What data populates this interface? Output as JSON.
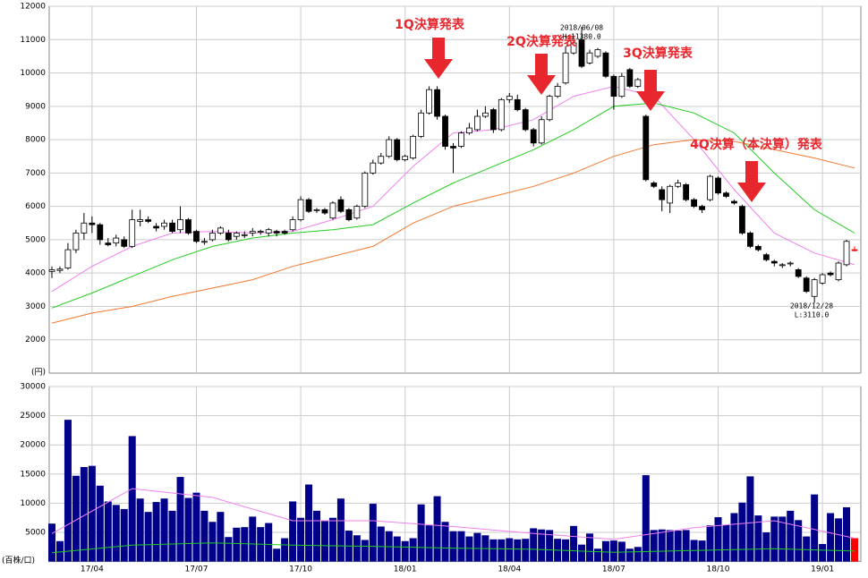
{
  "chart_data": [
    {
      "type": "candlestick",
      "y_label": "(円)",
      "ylim": [
        1000,
        12000
      ],
      "yticks": [
        2000,
        3000,
        4000,
        5000,
        6000,
        7000,
        8000,
        9000,
        10000,
        11000,
        12000
      ],
      "grid": true,
      "up_color": "#ffffff",
      "down_color": "#000000",
      "last_color": "#ff0000",
      "open": [
        4050,
        4080,
        4150,
        4700,
        5200,
        5500,
        5450,
        4900,
        4900,
        5000,
        4800,
        5550,
        5600,
        5400,
        5400,
        5500,
        5300,
        5600,
        5250,
        4950,
        5000,
        5200,
        5200,
        5100,
        5150,
        5200,
        5250,
        5200,
        5250,
        5250,
        5300,
        5600,
        6200,
        5900,
        5900,
        5650,
        6200,
        5900,
        5650,
        6000,
        7000,
        7300,
        7500,
        8000,
        7400,
        7450,
        8100,
        8800,
        9500,
        8700,
        7800,
        7800,
        8200,
        8300,
        8700,
        8900,
        8300,
        9200,
        9200,
        8900,
        8300,
        7900,
        8600,
        9300,
        9700,
        10600,
        11000,
        10300,
        10500,
        10600,
        9900,
        9300,
        10100,
        9600,
        8700,
        6700,
        6500,
        6100,
        6600,
        6650,
        6200,
        6000,
        6200,
        6850,
        6400,
        6150,
        6000,
        5200,
        4800,
        4550,
        4350,
        4250,
        4300,
        4100,
        3850,
        3300,
        3700,
        4000,
        3800,
        4250,
        4700
      ],
      "high": [
        4200,
        4200,
        4900,
        5300,
        5800,
        5700,
        5500,
        5050,
        5150,
        5100,
        5900,
        5900,
        5700,
        5500,
        5600,
        5600,
        6000,
        5650,
        5300,
        5050,
        5300,
        5400,
        5300,
        5250,
        5250,
        5350,
        5300,
        5350,
        5300,
        5300,
        5700,
        6300,
        6250,
        5950,
        5950,
        6150,
        6300,
        5950,
        6050,
        7050,
        7400,
        7600,
        8100,
        8050,
        7550,
        8150,
        8900,
        9600,
        9600,
        8750,
        7900,
        8250,
        8500,
        8900,
        9000,
        8950,
        9250,
        9400,
        9350,
        8950,
        8350,
        8700,
        9350,
        9700,
        10800,
        11000,
        11380,
        10700,
        10750,
        10650,
        9950,
        10000,
        10150,
        9850,
        8750,
        6750,
        6600,
        6650,
        6800,
        6700,
        6250,
        6050,
        6950,
        6900,
        6450,
        6200,
        6050,
        5250,
        4850,
        4600,
        4400,
        4300,
        4350,
        4150,
        3900,
        3850,
        4000,
        4050,
        4350,
        5000,
        4800
      ],
      "low": [
        3850,
        4000,
        4100,
        4600,
        5000,
        5200,
        4850,
        4800,
        4800,
        4750,
        4750,
        5400,
        5500,
        5250,
        5300,
        5200,
        5200,
        5150,
        4900,
        4850,
        4950,
        5150,
        4950,
        5000,
        5050,
        5100,
        5150,
        5100,
        5100,
        5150,
        5250,
        5550,
        5800,
        5800,
        5750,
        5600,
        5800,
        5550,
        5600,
        5950,
        6950,
        7250,
        7450,
        7350,
        7350,
        7400,
        8050,
        8750,
        8600,
        7700,
        7000,
        7750,
        8150,
        8250,
        8650,
        8200,
        8250,
        9100,
        8850,
        8250,
        7800,
        7850,
        8550,
        9250,
        9650,
        10550,
        10150,
        10250,
        10450,
        9850,
        8900,
        9250,
        9550,
        9550,
        6750,
        6550,
        5850,
        5800,
        6550,
        6150,
        5950,
        5800,
        6150,
        6350,
        6250,
        6050,
        5150,
        4750,
        4650,
        4350,
        4200,
        4150,
        4200,
        3850,
        3400,
        3110,
        3650,
        3900,
        3750,
        4200,
        4650
      ],
      "close": [
        4100,
        4120,
        4700,
        5200,
        5500,
        5450,
        5000,
        4850,
        5050,
        4800,
        5600,
        5600,
        5550,
        5350,
        5500,
        5250,
        5600,
        5200,
        4950,
        4950,
        5200,
        5350,
        5000,
        5200,
        5150,
        5250,
        5250,
        5300,
        5200,
        5200,
        5600,
        6200,
        5850,
        5900,
        5800,
        6100,
        5850,
        5600,
        6000,
        7000,
        7300,
        7500,
        8000,
        7400,
        7500,
        8100,
        8800,
        9500,
        8700,
        7800,
        7750,
        8200,
        8350,
        8700,
        8800,
        8300,
        9200,
        9300,
        8900,
        8300,
        7900,
        8600,
        9300,
        9600,
        10600,
        10900,
        10200,
        10600,
        10700,
        9900,
        9300,
        9900,
        9600,
        9800,
        6800,
        6600,
        6200,
        6600,
        6700,
        6200,
        6000,
        5900,
        6900,
        6400,
        6300,
        6100,
        5200,
        4800,
        4700,
        4400,
        4300,
        4250,
        4300,
        3900,
        3450,
        3800,
        3950,
        3950,
        4300,
        4950,
        4700
      ],
      "series": [
        {
          "color": "#ee82ee",
          "x": [
            0,
            5,
            10,
            15,
            20,
            25,
            30,
            35,
            40,
            45,
            50,
            55,
            60,
            65,
            70,
            75,
            80,
            85,
            90,
            95,
            100
          ],
          "values": [
            3450,
            4200,
            4800,
            5200,
            5250,
            5200,
            5250,
            5600,
            6000,
            7200,
            8200,
            8300,
            8600,
            9300,
            9600,
            9300,
            8000,
            6500,
            5200,
            4600,
            4250
          ]
        },
        {
          "color": "#22cc22",
          "x": [
            0,
            5,
            10,
            15,
            20,
            25,
            30,
            35,
            40,
            45,
            50,
            55,
            60,
            65,
            70,
            75,
            80,
            85,
            90,
            95,
            100
          ],
          "values": [
            2950,
            3400,
            3900,
            4400,
            4800,
            5050,
            5200,
            5300,
            5450,
            6100,
            6700,
            7200,
            7700,
            8300,
            9000,
            9100,
            8800,
            8200,
            7000,
            5900,
            5200
          ]
        },
        {
          "color": "#f07830",
          "x": [
            0,
            5,
            10,
            15,
            20,
            25,
            30,
            35,
            40,
            45,
            50,
            55,
            60,
            65,
            70,
            75,
            80,
            85,
            90,
            95,
            100
          ],
          "values": [
            2500,
            2800,
            3000,
            3300,
            3550,
            3800,
            4200,
            4500,
            4800,
            5500,
            6000,
            6300,
            6600,
            7000,
            7500,
            7850,
            8000,
            7950,
            7700,
            7450,
            7150
          ]
        }
      ],
      "annotations": [
        "1Q決算発表",
        "2Q決算発表",
        "3Q決算発表",
        "4Q決算（本決算）発表"
      ],
      "marker_labels": [
        "2018/06/08",
        "H:11380.0",
        "2018/12/28",
        "L:3110.0"
      ]
    },
    {
      "type": "bar",
      "y_label": "(百株/口)",
      "ylim": [
        0,
        30000
      ],
      "yticks": [
        5000,
        10000,
        15000,
        20000,
        25000,
        30000
      ],
      "grid": true,
      "color": "#00008b",
      "last_color": "#ff0000",
      "categories": [
        null,
        null,
        null,
        null,
        null,
        "17/04",
        null,
        null,
        null,
        null,
        null,
        null,
        null,
        null,
        null,
        null,
        null,
        null,
        "17/07",
        null,
        null,
        null,
        null,
        null,
        null,
        null,
        null,
        null,
        null,
        null,
        null,
        "17/10",
        null,
        null,
        null,
        null,
        null,
        null,
        null,
        null,
        null,
        null,
        null,
        null,
        "18/01",
        null,
        null,
        null,
        null,
        null,
        null,
        null,
        null,
        null,
        null,
        null,
        null,
        "18/04",
        null,
        null,
        null,
        null,
        null,
        null,
        null,
        null,
        null,
        null,
        null,
        null,
        "18/07",
        null,
        null,
        null,
        null,
        null,
        null,
        null,
        null,
        null,
        null,
        null,
        null,
        "18/10",
        null,
        null,
        null,
        null,
        null,
        null,
        null,
        null,
        null,
        null,
        null,
        null,
        "19/01",
        null,
        null,
        null,
        null
      ],
      "values": [
        6500,
        3500,
        24300,
        14700,
        16200,
        16400,
        13000,
        10300,
        9700,
        9000,
        21500,
        10800,
        8500,
        10200,
        10800,
        8700,
        14500,
        10900,
        11800,
        8700,
        6800,
        8500,
        4200,
        5800,
        5900,
        7700,
        5900,
        6600,
        2200,
        4000,
        10300,
        7500,
        13200,
        8700,
        7000,
        7500,
        10800,
        5300,
        4500,
        3700,
        9900,
        6000,
        5200,
        4300,
        3500,
        4000,
        9800,
        6200,
        11200,
        6800,
        5200,
        5200,
        4300,
        4900,
        4500,
        3800,
        3800,
        4000,
        3800,
        3900,
        5700,
        5500,
        5400,
        3900,
        3800,
        6100,
        2900,
        4800,
        2200,
        3500,
        3600,
        3400,
        2200,
        2500,
        14800,
        5400,
        5500,
        5400,
        5300,
        5400,
        3700,
        3600,
        6200,
        7600,
        6300,
        8300,
        10100,
        14600,
        7900,
        5000,
        7700,
        7700,
        8700,
        7100,
        4300,
        11500,
        3000,
        8300,
        7400,
        9300,
        4000
      ],
      "series": [
        {
          "color": "#ee82ee",
          "x": [
            0,
            10,
            20,
            30,
            40,
            50,
            60,
            70,
            80,
            90,
            100
          ],
          "values": [
            4800,
            12500,
            11000,
            7000,
            7000,
            6000,
            4800,
            3800,
            5800,
            7000,
            4000
          ]
        },
        {
          "color": "#22cc22",
          "x": [
            0,
            10,
            20,
            30,
            40,
            50,
            60,
            70,
            80,
            90,
            100
          ],
          "values": [
            1500,
            2800,
            3200,
            2800,
            2600,
            2300,
            2100,
            1600,
            1900,
            2200,
            1800
          ]
        }
      ]
    }
  ]
}
